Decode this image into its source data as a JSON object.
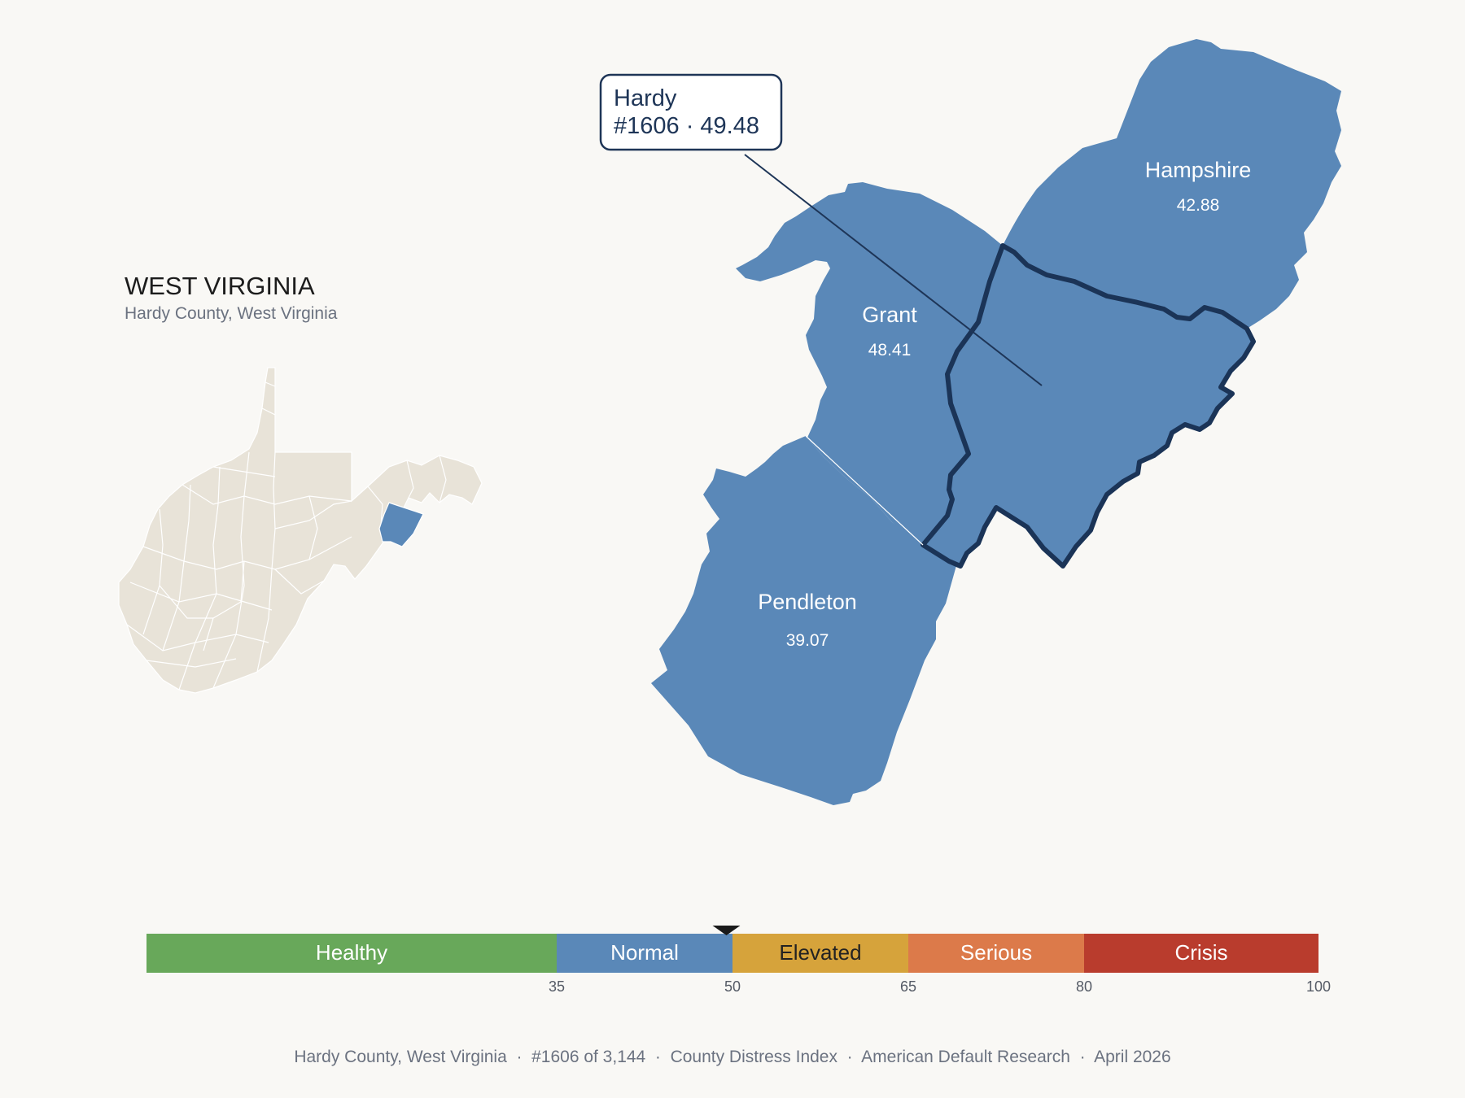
{
  "header": {
    "state": "WEST VIRGINIA",
    "subtitle": "Hardy County, West Virginia"
  },
  "colors": {
    "background": "#f9f8f5",
    "county_fill": "#5a88b8",
    "highlight_outline": "#1b3457",
    "inset_fill": "#e8e3d8",
    "inset_highlight": "#5a88b8"
  },
  "callout": {
    "line1": "Hardy",
    "line2": "#1606 · 49.48"
  },
  "counties": [
    {
      "name": "Hampshire",
      "score": "42.88"
    },
    {
      "name": "Grant",
      "score": "48.41"
    },
    {
      "name": "Pendleton",
      "score": "39.07"
    },
    {
      "name": "Hardy",
      "score": "49.48",
      "rank": 1606,
      "highlighted": true
    }
  ],
  "scale": {
    "min": 0,
    "max": 100,
    "marker_value": 49.48,
    "bands": [
      {
        "label": "Healthy",
        "from": 0,
        "to": 35,
        "color": "#68a85a",
        "text_color": "#ffffff"
      },
      {
        "label": "Normal",
        "from": 35,
        "to": 50,
        "color": "#5a88b8",
        "text_color": "#ffffff"
      },
      {
        "label": "Elevated",
        "from": 50,
        "to": 65,
        "color": "#d6a33b",
        "text_color": "#222222"
      },
      {
        "label": "Serious",
        "from": 65,
        "to": 80,
        "color": "#dc7a4a",
        "text_color": "#ffffff"
      },
      {
        "label": "Crisis",
        "from": 80,
        "to": 100,
        "color": "#b93c2d",
        "text_color": "#ffffff"
      }
    ],
    "ticks": [
      "35",
      "50",
      "65",
      "80",
      "100"
    ]
  },
  "footer": {
    "text": "Hardy County, West Virginia  ·  #1606 of 3,144  ·  County Distress Index  ·  American Default Research  ·  April 2026"
  }
}
